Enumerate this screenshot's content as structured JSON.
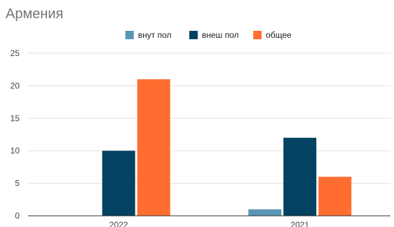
{
  "chart_data": {
    "type": "bar",
    "title": "Армения",
    "categories": [
      "2022",
      "2021"
    ],
    "series": [
      {
        "name": "внут пол",
        "color": "#5a96b4",
        "values": [
          0,
          1
        ]
      },
      {
        "name": "внеш пол",
        "color": "#034262",
        "values": [
          10,
          12
        ]
      },
      {
        "name": "общее",
        "color": "#ff6d31",
        "values": [
          21,
          6
        ]
      }
    ],
    "ylim": [
      0,
      25
    ],
    "yticks": [
      0,
      5,
      10,
      15,
      20,
      25
    ],
    "grid": true,
    "legend_position": "top-center"
  }
}
